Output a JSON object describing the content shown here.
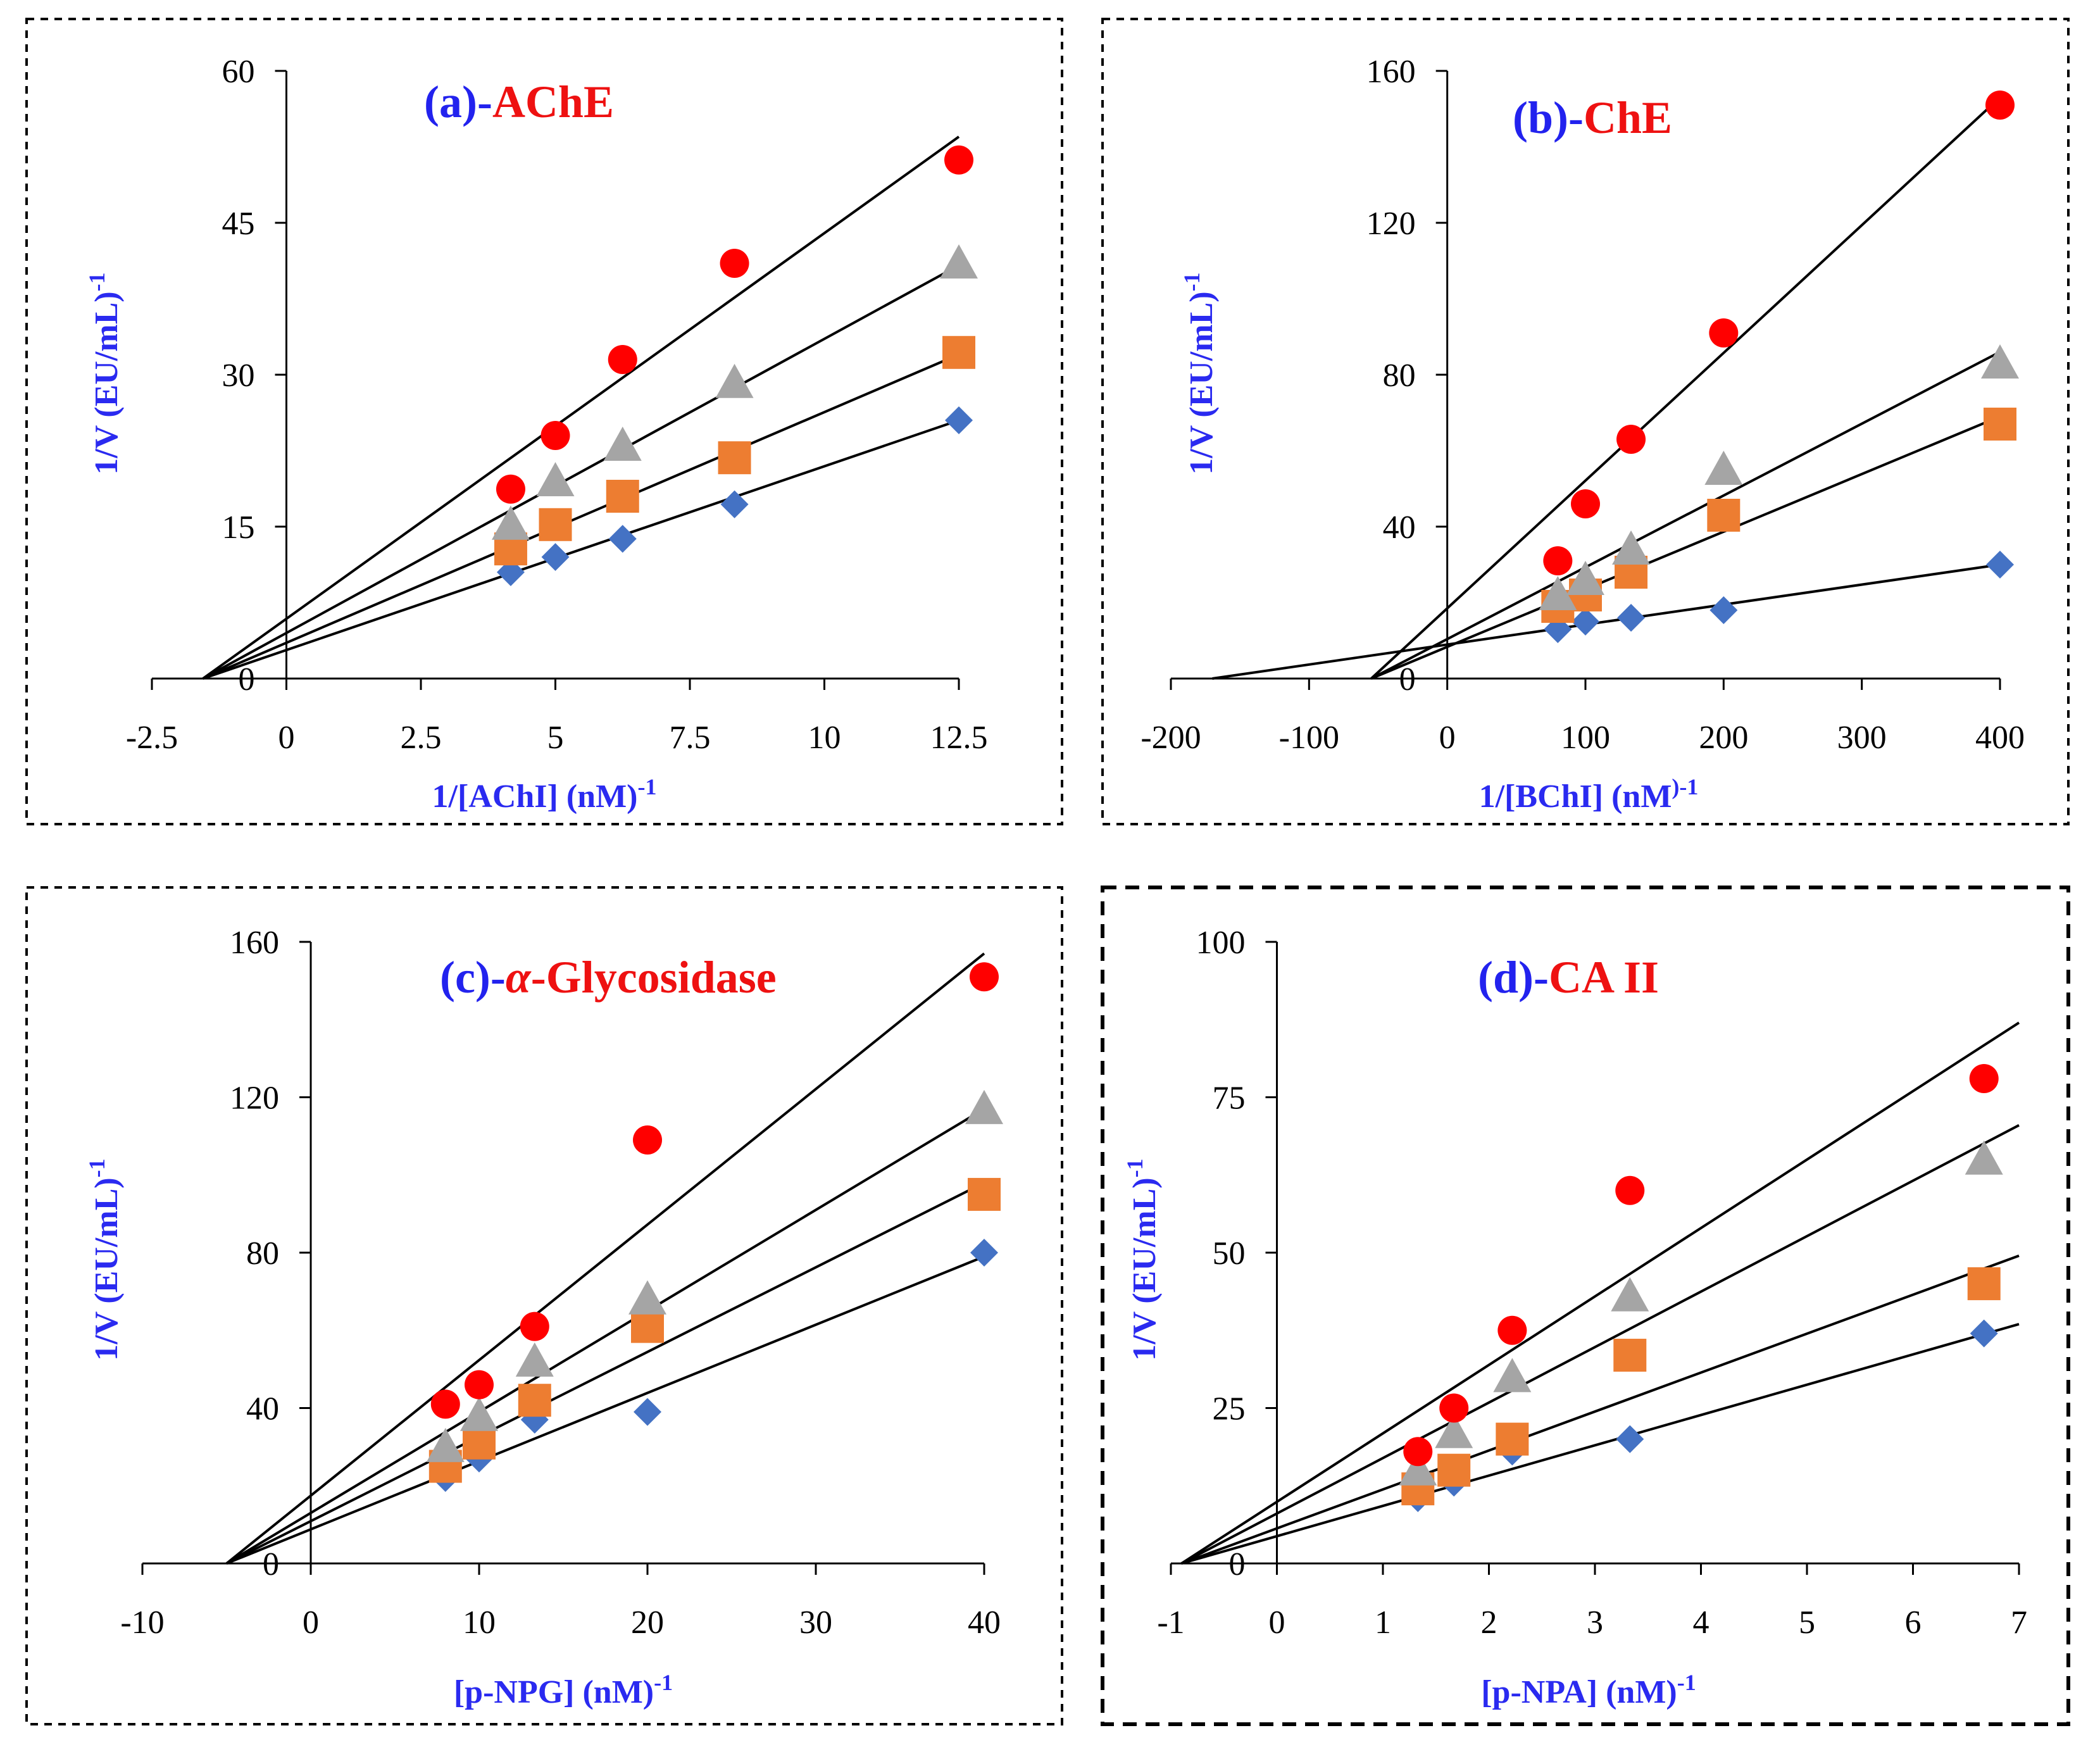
{
  "colors": {
    "series": [
      "#4472C4",
      "#ED7D31",
      "#A5A5A5",
      "#FF0000"
    ],
    "title_prefix": "#2222ee",
    "title_name": "#ee1111",
    "axis_label": "#2a2af0"
  },
  "chart_data": [
    {
      "id": "a",
      "type": "scatter",
      "title_prefix": "(a)-",
      "title_name": "AChE",
      "xlabel": "1/[AChI] (nM)",
      "xlabel_sup": "-1",
      "ylabel": "1/V (EU/mL)",
      "ylabel_sup": "-1",
      "xlim": [
        -2.5,
        12.5
      ],
      "ylim": [
        0,
        60
      ],
      "xticks": [
        -2.5,
        0,
        2.5,
        5,
        7.5,
        10,
        12.5
      ],
      "yticks": [
        0,
        15,
        30,
        45,
        60
      ],
      "xtick_labels": [
        "-2.5",
        "0",
        "2.5",
        "5",
        "7.5",
        "10",
        "12.5"
      ],
      "ytick_labels": [
        "0",
        "15",
        "30",
        "45",
        "60"
      ],
      "series": [
        {
          "marker": "diamond",
          "x": [
            4.17,
            5.0,
            6.25,
            8.33,
            12.5
          ],
          "y": [
            10.5,
            12.0,
            13.8,
            17.2,
            25.5
          ],
          "fit": [
            [
              -1.55,
              0
            ],
            [
              12.5,
              25.5
            ]
          ]
        },
        {
          "marker": "square",
          "x": [
            4.17,
            5.0,
            6.25,
            8.33,
            12.5
          ],
          "y": [
            12.8,
            15.2,
            18.0,
            21.8,
            32.2
          ],
          "fit": [
            [
              -1.55,
              0
            ],
            [
              12.5,
              32.0
            ]
          ]
        },
        {
          "marker": "triangle",
          "x": [
            4.17,
            5.0,
            6.25,
            8.33,
            12.5
          ],
          "y": [
            15.2,
            19.5,
            23.0,
            29.2,
            41.0
          ],
          "fit": [
            [
              -1.55,
              0
            ],
            [
              12.5,
              40.8
            ]
          ]
        },
        {
          "marker": "circle",
          "x": [
            4.17,
            5.0,
            6.25,
            8.33,
            12.5
          ],
          "y": [
            18.7,
            24.0,
            31.5,
            41.0,
            51.2
          ],
          "fit": [
            [
              -1.55,
              0
            ],
            [
              12.5,
              53.5
            ]
          ]
        }
      ]
    },
    {
      "id": "b",
      "type": "scatter",
      "title_prefix": "(b)-",
      "title_name": "ChE",
      "xlabel": "1/[BChI] (nM",
      "xlabel_sup": ")-1",
      "ylabel": "1/V (EU/mL)",
      "ylabel_sup": "-1",
      "xlim": [
        -200,
        400
      ],
      "ylim": [
        0,
        160
      ],
      "xticks": [
        -200,
        -100,
        0,
        100,
        200,
        300,
        400
      ],
      "yticks": [
        0,
        40,
        80,
        120,
        160
      ],
      "xtick_labels": [
        "-200",
        "-100",
        "0",
        "100",
        "200",
        "300",
        "400"
      ],
      "ytick_labels": [
        "0",
        "40",
        "80",
        "120",
        "160"
      ],
      "series": [
        {
          "marker": "diamond",
          "x": [
            80,
            100,
            133,
            200,
            400
          ],
          "y": [
            13,
            15,
            16,
            18,
            30
          ],
          "fit": [
            [
              -170,
              0
            ],
            [
              400,
              30
            ]
          ]
        },
        {
          "marker": "square",
          "x": [
            80,
            100,
            133,
            200,
            400
          ],
          "y": [
            19,
            22,
            28,
            43,
            67
          ],
          "fit": [
            [
              -55,
              0
            ],
            [
              400,
              69
            ]
          ]
        },
        {
          "marker": "triangle",
          "x": [
            80,
            100,
            133,
            200,
            400
          ],
          "y": [
            22,
            26,
            34,
            55,
            83
          ],
          "fit": [
            [
              -55,
              0
            ],
            [
              400,
              86
            ]
          ]
        },
        {
          "marker": "circle",
          "x": [
            80,
            100,
            133,
            200,
            400
          ],
          "y": [
            31,
            46,
            63,
            91,
            151
          ],
          "fit": [
            [
              -55,
              0
            ],
            [
              400,
              153
            ]
          ]
        }
      ]
    },
    {
      "id": "c",
      "type": "scatter",
      "title_prefix": "(c)-",
      "title_alpha": "α",
      "title_name": "-Glycosidase",
      "xlabel": "[p-NPG] (nM)",
      "xlabel_sup": "-1",
      "ylabel": "1/V (EU/mL)",
      "ylabel_sup": "-1",
      "xlim": [
        -10,
        40
      ],
      "ylim": [
        0,
        160
      ],
      "xticks": [
        -10,
        0,
        10,
        20,
        30,
        40
      ],
      "yticks": [
        0,
        40,
        80,
        120,
        160
      ],
      "xtick_labels": [
        "-10",
        "0",
        "10",
        "20",
        "30",
        "40"
      ],
      "ytick_labels": [
        "0",
        "40",
        "80",
        "120",
        "160"
      ],
      "series": [
        {
          "marker": "diamond",
          "x": [
            8,
            10,
            13.3,
            20,
            40
          ],
          "y": [
            22,
            27,
            37,
            39,
            80
          ],
          "fit": [
            [
              -5,
              0
            ],
            [
              40,
              79
            ]
          ]
        },
        {
          "marker": "square",
          "x": [
            8,
            10,
            13.3,
            20,
            40
          ],
          "y": [
            25,
            31,
            42,
            61,
            95
          ],
          "fit": [
            [
              -5,
              0
            ],
            [
              40,
              98
            ]
          ]
        },
        {
          "marker": "triangle",
          "x": [
            8,
            10,
            13.3,
            20,
            40
          ],
          "y": [
            30,
            38,
            52,
            68,
            117
          ],
          "fit": [
            [
              -5,
              0
            ],
            [
              40,
              117
            ]
          ]
        },
        {
          "marker": "circle",
          "x": [
            8,
            10,
            13.3,
            20,
            40
          ],
          "y": [
            41,
            46,
            61,
            109,
            151
          ],
          "fit": [
            [
              -5,
              0
            ],
            [
              40,
              157
            ]
          ]
        }
      ]
    },
    {
      "id": "d",
      "type": "scatter",
      "title_prefix": "(d)-",
      "title_name": "CA II",
      "xlabel": "[p-NPA] (nM)",
      "xlabel_sup": "-1",
      "ylabel": "1/V (EU/mL)",
      "ylabel_sup": "-1",
      "xlim": [
        -1,
        7
      ],
      "ylim": [
        0,
        100
      ],
      "xticks": [
        -1,
        0,
        1,
        2,
        3,
        4,
        5,
        6,
        7
      ],
      "yticks": [
        0,
        25,
        50,
        75,
        100
      ],
      "xtick_labels": [
        "-1",
        "0",
        "1",
        "2",
        "3",
        "4",
        "5",
        "6",
        "7"
      ],
      "ytick_labels": [
        "0",
        "25",
        "50",
        "75",
        "100"
      ],
      "series": [
        {
          "marker": "diamond",
          "x": [
            1.33,
            1.67,
            2.22,
            3.33,
            6.67
          ],
          "y": [
            10.5,
            13,
            18,
            20,
            37
          ],
          "fit": [
            [
              -0.9,
              0
            ],
            [
              7,
              38.5
            ]
          ]
        },
        {
          "marker": "square",
          "x": [
            1.33,
            1.67,
            2.22,
            3.33,
            6.67
          ],
          "y": [
            12,
            15,
            20,
            33.5,
            45
          ],
          "fit": [
            [
              -0.9,
              0
            ],
            [
              7,
              49.5
            ]
          ]
        },
        {
          "marker": "triangle",
          "x": [
            1.33,
            1.67,
            2.22,
            3.33,
            6.67
          ],
          "y": [
            15,
            21,
            30,
            43,
            65
          ],
          "fit": [
            [
              -0.9,
              0
            ],
            [
              7,
              70.5
            ]
          ]
        },
        {
          "marker": "circle",
          "x": [
            1.33,
            1.67,
            2.22,
            3.33,
            6.67
          ],
          "y": [
            18,
            25,
            37.5,
            60,
            78
          ],
          "fit": [
            [
              -0.9,
              0
            ],
            [
              7,
              87
            ]
          ]
        }
      ]
    }
  ]
}
